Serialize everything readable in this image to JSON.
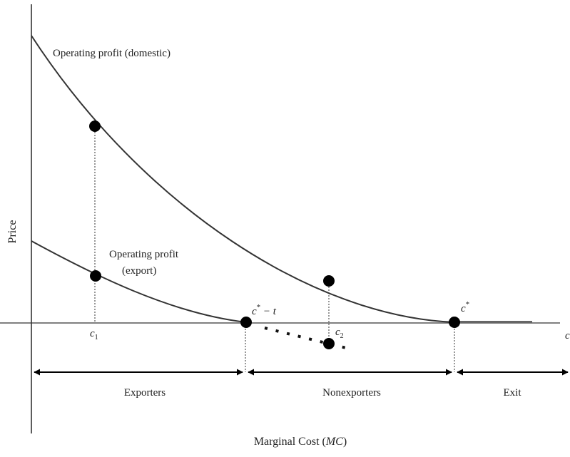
{
  "diagram": {
    "y_axis_label": "Price",
    "x_axis_label_prefix": "Marginal Cost (",
    "x_axis_label_italic": "MC",
    "x_axis_label_suffix": ")",
    "x_axis_end_label": "c",
    "curves": {
      "domestic": "Operating profit (domestic)",
      "export_line1": "Operating profit",
      "export_line2": "(export)"
    },
    "points": {
      "c1": {
        "base": "c",
        "sub": "1"
      },
      "c2": {
        "base": "c",
        "sub": "2"
      },
      "cstar_minus_t": {
        "base": "c",
        "sup": "*",
        "rest": " − t"
      },
      "cstar": {
        "base": "c",
        "sup": "*"
      }
    },
    "regions": [
      "Exporters",
      "Nonexporters",
      "Exit"
    ]
  },
  "colors": {
    "curve": "#333333",
    "point": "#000000",
    "text": "#222222"
  }
}
